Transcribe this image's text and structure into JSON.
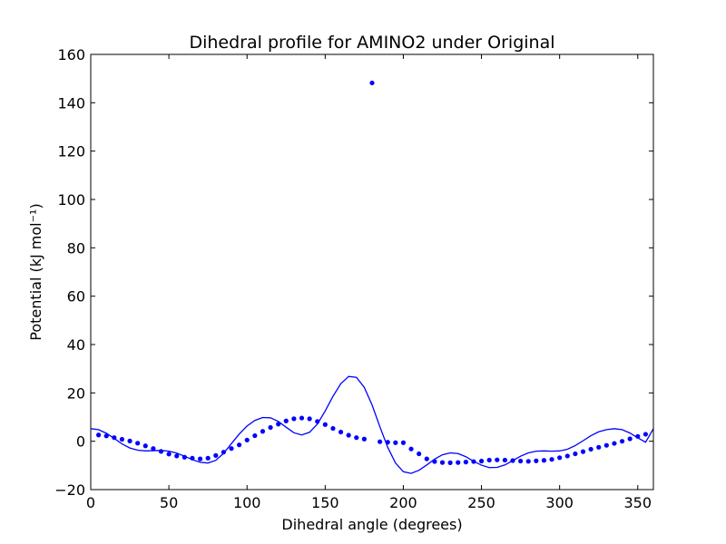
{
  "chart_data": {
    "type": "scatter",
    "title": "Dihedral profile for AMINO2 under Original",
    "xlabel": "Dihedral angle (degrees)",
    "ylabel": "Potential (kJ mol⁻¹)",
    "xlim": [
      0,
      360
    ],
    "ylim": [
      -20,
      160
    ],
    "xticks": [
      0,
      50,
      100,
      150,
      200,
      250,
      300,
      350
    ],
    "yticks": [
      -20,
      0,
      20,
      40,
      60,
      80,
      100,
      120,
      140,
      160
    ],
    "grid": false,
    "color": "#0000ff",
    "series": [
      {
        "style": "points",
        "x": [
          5,
          10,
          15,
          20,
          25,
          30,
          35,
          40,
          45,
          50,
          55,
          60,
          65,
          70,
          75,
          80,
          85,
          90,
          95,
          100,
          105,
          110,
          115,
          120,
          125,
          130,
          135,
          140,
          145,
          150,
          155,
          160,
          165,
          170,
          175,
          180,
          185,
          190,
          195,
          200,
          205,
          210,
          215,
          220,
          225,
          230,
          235,
          240,
          245,
          250,
          255,
          260,
          265,
          270,
          275,
          280,
          285,
          290,
          295,
          300,
          305,
          310,
          315,
          320,
          325,
          330,
          335,
          340,
          345,
          350,
          355
        ],
        "y": [
          2.6,
          2.2,
          1.5,
          0.8,
          0.1,
          -0.8,
          -1.9,
          -3.0,
          -4.2,
          -5.3,
          -6.1,
          -6.6,
          -7.0,
          -7.3,
          -7.0,
          -5.9,
          -4.5,
          -3.0,
          -1.5,
          0.5,
          2.3,
          4.1,
          5.7,
          7.1,
          8.4,
          9.3,
          9.6,
          9.3,
          8.2,
          6.9,
          5.3,
          3.8,
          2.5,
          1.5,
          0.9,
          148.2,
          -0.2,
          -0.4,
          -0.6,
          -0.6,
          -3.2,
          -5.2,
          -7.3,
          -8.4,
          -8.8,
          -8.9,
          -8.8,
          -8.6,
          -8.4,
          -8.2,
          -7.8,
          -7.7,
          -7.8,
          -8.0,
          -8.2,
          -8.3,
          -8.1,
          -7.9,
          -7.5,
          -6.8,
          -6.1,
          -5.2,
          -4.3,
          -3.3,
          -2.5,
          -1.7,
          -0.9,
          0.0,
          1.0,
          2.0,
          2.9
        ]
      },
      {
        "style": "line",
        "x": [
          0,
          5,
          10,
          15,
          20,
          25,
          30,
          35,
          40,
          45,
          50,
          55,
          60,
          65,
          70,
          75,
          80,
          85,
          90,
          95,
          100,
          105,
          110,
          115,
          120,
          125,
          130,
          135,
          140,
          145,
          150,
          155,
          160,
          165,
          170,
          175,
          180,
          185,
          190,
          195,
          200,
          205,
          210,
          215,
          220,
          225,
          230,
          235,
          240,
          245,
          250,
          255,
          260,
          265,
          270,
          275,
          280,
          285,
          290,
          295,
          300,
          305,
          310,
          315,
          320,
          325,
          330,
          335,
          340,
          345,
          350,
          355,
          360
        ],
        "y": [
          5.2,
          4.8,
          3.3,
          1.2,
          -1.1,
          -2.8,
          -3.7,
          -4.0,
          -3.9,
          -3.8,
          -4.1,
          -4.9,
          -6.2,
          -7.6,
          -8.7,
          -9.0,
          -7.9,
          -5.0,
          -1.0,
          3.0,
          6.3,
          8.6,
          9.8,
          9.7,
          8.2,
          5.8,
          3.5,
          2.6,
          3.7,
          7.1,
          12.5,
          18.6,
          23.8,
          26.8,
          26.4,
          22.3,
          15.0,
          6.0,
          -2.5,
          -9.0,
          -12.6,
          -13.3,
          -12.0,
          -9.8,
          -7.4,
          -5.6,
          -4.8,
          -5.1,
          -6.4,
          -8.3,
          -9.9,
          -10.9,
          -10.8,
          -9.8,
          -8.0,
          -6.2,
          -4.8,
          -4.1,
          -4.0,
          -4.1,
          -4.0,
          -3.3,
          -1.8,
          0.2,
          2.3,
          3.9,
          4.8,
          5.2,
          4.8,
          3.4,
          1.4,
          -0.4,
          5.2
        ]
      }
    ]
  }
}
